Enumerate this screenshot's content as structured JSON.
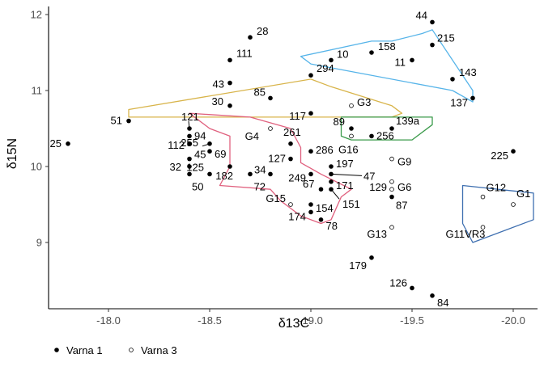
{
  "chart_data": {
    "type": "scatter",
    "title": "",
    "xlabel": "δ13C",
    "ylabel": "δ15N",
    "xlim": [
      -17.7,
      -20.1
    ],
    "ylim": [
      8.15,
      12.05
    ],
    "x_reversed": true,
    "x_ticks": [
      {
        "value": -18.0,
        "label": "-18.0"
      },
      {
        "value": -18.5,
        "label": "-18.5"
      },
      {
        "value": -19.0,
        "label": "-19.0"
      },
      {
        "value": -19.5,
        "label": "-19.5"
      },
      {
        "value": -20.0,
        "label": "-20.0"
      }
    ],
    "y_ticks": [
      {
        "value": 9,
        "label": "9"
      },
      {
        "value": 10,
        "label": "10"
      },
      {
        "value": 11,
        "label": "11"
      },
      {
        "value": 12,
        "label": "12"
      }
    ],
    "grid": false,
    "legend_position": "bottom-left",
    "series": [
      {
        "name": "Varna 1",
        "marker": "filled",
        "points": [
          {
            "label": "25",
            "x": -17.8,
            "y": 10.3
          },
          {
            "label": "51",
            "x": -18.1,
            "y": 10.6
          },
          {
            "label": "111",
            "x": -18.6,
            "y": 11.4
          },
          {
            "label": "43",
            "x": -18.6,
            "y": 11.1
          },
          {
            "label": "28",
            "x": -18.7,
            "y": 11.7
          },
          {
            "label": "30",
            "x": -18.6,
            "y": 10.8
          },
          {
            "label": "85",
            "x": -18.8,
            "y": 10.9
          },
          {
            "label": "294",
            "x": -19.0,
            "y": 11.2
          },
          {
            "label": "117",
            "x": -19.0,
            "y": 10.7
          },
          {
            "label": "10",
            "x": -19.1,
            "y": 11.4
          },
          {
            "label": "158",
            "x": -19.3,
            "y": 11.5
          },
          {
            "label": "11",
            "x": -19.5,
            "y": 11.4
          },
          {
            "label": "44",
            "x": -19.6,
            "y": 11.9
          },
          {
            "label": "215",
            "x": -19.6,
            "y": 11.6
          },
          {
            "label": "143",
            "x": -19.7,
            "y": 11.15
          },
          {
            "label": "137",
            "x": -19.8,
            "y": 10.9
          },
          {
            "label": "89",
            "x": -19.2,
            "y": 10.5
          },
          {
            "label": "139a",
            "x": -19.4,
            "y": 10.5
          },
          {
            "label": "256",
            "x": -19.3,
            "y": 10.4
          },
          {
            "label": "225",
            "x": -20.0,
            "y": 10.2
          },
          {
            "label": "121",
            "x": -18.4,
            "y": 10.5
          },
          {
            "label": "94",
            "x": -18.4,
            "y": 10.4
          },
          {
            "label": "112",
            "x": -18.4,
            "y": 10.3
          },
          {
            "label": "255",
            "x": -18.5,
            "y": 10.3
          },
          {
            "label": "69",
            "x": -18.5,
            "y": 10.2
          },
          {
            "label": "45",
            "x": -18.4,
            "y": 10.1
          },
          {
            "label": "32",
            "x": -18.4,
            "y": 10.0
          },
          {
            "label": "125",
            "x": -18.5,
            "y": 9.9
          },
          {
            "label": "182",
            "x": -18.6,
            "y": 10.0
          },
          {
            "label": "50",
            "x": -18.4,
            "y": 9.9
          },
          {
            "label": "34",
            "x": -18.7,
            "y": 9.9
          },
          {
            "label": "72",
            "x": -18.8,
            "y": 9.9
          },
          {
            "label": "261",
            "x": -18.9,
            "y": 10.3
          },
          {
            "label": "127",
            "x": -18.9,
            "y": 10.1
          },
          {
            "label": "286",
            "x": -19.0,
            "y": 10.2
          },
          {
            "label": "249",
            "x": -19.0,
            "y": 9.9
          },
          {
            "label": "197",
            "x": -19.1,
            "y": 10.0
          },
          {
            "label": "47",
            "x": -19.1,
            "y": 9.9
          },
          {
            "label": "171",
            "x": -19.1,
            "y": 9.8
          },
          {
            "label": "67",
            "x": -19.05,
            "y": 9.7
          },
          {
            "label": "151",
            "x": -19.1,
            "y": 9.7
          },
          {
            "label": "154",
            "x": -19.0,
            "y": 9.5
          },
          {
            "label": "174",
            "x": -19.0,
            "y": 9.4
          },
          {
            "label": "78",
            "x": -19.05,
            "y": 9.3
          },
          {
            "label": "87",
            "x": -19.4,
            "y": 9.6
          },
          {
            "label": "179",
            "x": -19.3,
            "y": 8.8
          },
          {
            "label": "126",
            "x": -19.5,
            "y": 8.4
          },
          {
            "label": "84",
            "x": -19.6,
            "y": 8.3
          }
        ]
      },
      {
        "name": "Varna 3",
        "marker": "open",
        "points": [
          {
            "label": "G3",
            "x": -19.2,
            "y": 10.8
          },
          {
            "label": "G4",
            "x": -18.8,
            "y": 10.5
          },
          {
            "label": "G16",
            "x": -19.2,
            "y": 10.4
          },
          {
            "label": "G9",
            "x": -19.4,
            "y": 10.1
          },
          {
            "label": "129",
            "x": -19.4,
            "y": 9.8
          },
          {
            "label": "G6",
            "x": -19.4,
            "y": 9.7
          },
          {
            "label": "G15",
            "x": -18.9,
            "y": 9.5
          },
          {
            "label": "G13",
            "x": -19.4,
            "y": 9.2
          },
          {
            "label": "G12",
            "x": -19.85,
            "y": 9.6
          },
          {
            "label": "G1",
            "x": -20.0,
            "y": 9.5
          },
          {
            "label": "G11VR3",
            "x": -19.85,
            "y": 9.2
          }
        ]
      }
    ],
    "hulls": [
      {
        "color": "#56B4E9",
        "points": [
          [
            -18.95,
            11.45
          ],
          [
            -19.0,
            11.35
          ],
          [
            -19.7,
            11.0
          ],
          [
            -19.8,
            10.85
          ],
          [
            -19.8,
            11.0
          ],
          [
            -19.6,
            11.8
          ],
          [
            -19.55,
            11.75
          ],
          [
            -19.4,
            11.65
          ],
          [
            -19.3,
            11.65
          ]
        ]
      },
      {
        "color": "#D8B44A",
        "points": [
          [
            -18.1,
            10.75
          ],
          [
            -18.1,
            10.65
          ],
          [
            -19.4,
            10.65
          ],
          [
            -19.45,
            10.7
          ],
          [
            -19.4,
            10.8
          ],
          [
            -19.1,
            11.05
          ],
          [
            -19.0,
            11.15
          ]
        ]
      },
      {
        "color": "#3A9A4A",
        "points": [
          [
            -19.15,
            10.65
          ],
          [
            -19.6,
            10.65
          ],
          [
            -19.6,
            10.55
          ],
          [
            -19.5,
            10.35
          ],
          [
            -19.2,
            10.35
          ],
          [
            -19.15,
            10.4
          ]
        ]
      },
      {
        "color": "#E0607E",
        "points": [
          [
            -18.4,
            10.7
          ],
          [
            -18.5,
            10.5
          ],
          [
            -18.6,
            10.4
          ],
          [
            -18.6,
            10.0
          ],
          [
            -18.55,
            9.75
          ],
          [
            -18.8,
            9.7
          ],
          [
            -18.85,
            9.55
          ],
          [
            -18.95,
            9.35
          ],
          [
            -19.05,
            9.25
          ],
          [
            -19.1,
            9.3
          ],
          [
            -19.15,
            9.6
          ],
          [
            -19.2,
            9.7
          ],
          [
            -19.05,
            9.9
          ],
          [
            -18.95,
            10.05
          ],
          [
            -18.95,
            10.25
          ],
          [
            -18.9,
            10.5
          ],
          [
            -18.7,
            10.65
          ]
        ]
      },
      {
        "color": "#3E6FB0",
        "points": [
          [
            -19.75,
            9.75
          ],
          [
            -20.1,
            9.65
          ],
          [
            -20.1,
            9.3
          ],
          [
            -19.8,
            9.0
          ],
          [
            -19.75,
            9.25
          ]
        ]
      }
    ],
    "label_offsets_note_removed": true,
    "legend": [
      {
        "label": "Varna 1",
        "marker": "filled"
      },
      {
        "label": "Varna 3",
        "marker": "open"
      }
    ]
  }
}
